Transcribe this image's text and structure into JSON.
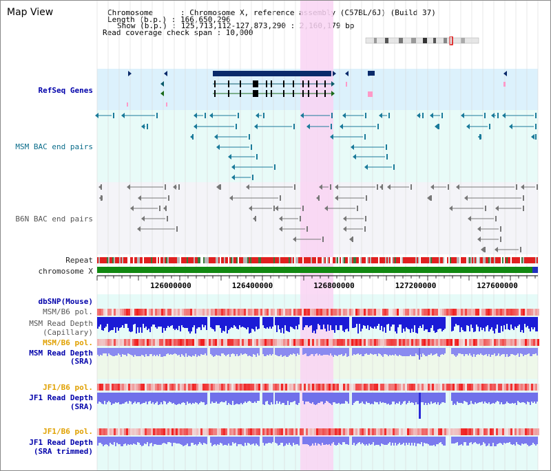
{
  "title": "Map View",
  "header": {
    "chromosome_line": "Chromosome      : Chromosome X, reference assembly (C57BL/6J) (Build 37)",
    "length_line": "Length (b.p.) : 166,650,296",
    "show_line": "Show (b.p.) : 125,713,112-127,873,290 : 2,160,179 bp",
    "coverage_line": "Read coverage check span : 10,000"
  },
  "tracks": [
    {
      "key": "refseq",
      "label": "RefSeq Genes",
      "color": "#0000aa"
    },
    {
      "key": "msm_bac",
      "label": "MSM BAC end pairs",
      "color": "#0a6c8a"
    },
    {
      "key": "b6n_bac",
      "label": "B6N BAC end pairs",
      "color": "#555555"
    },
    {
      "key": "repeat",
      "label": "Repeat",
      "color": "#222222"
    },
    {
      "key": "chrx",
      "label": "chromosome X",
      "color": "#222222"
    },
    {
      "key": "dbsnp",
      "label": "dbSNP(Mouse)",
      "color": "#0000aa"
    },
    {
      "key": "msm_b6_pol_1",
      "label": "MSM/B6 pol.",
      "color": "#555555"
    },
    {
      "key": "msm_depth_cap_1",
      "label": "MSM Read Depth",
      "color": "#555555"
    },
    {
      "key": "msm_depth_cap_2",
      "label": "(Capillary)",
      "color": "#555555"
    },
    {
      "key": "msm_b6_pol_2",
      "label": "MSM/B6 pol.",
      "color": "#e0a000"
    },
    {
      "key": "msm_depth_sra_1",
      "label": "MSM Read Depth",
      "color": "#0000aa"
    },
    {
      "key": "msm_depth_sra_2",
      "label": "(SRA)",
      "color": "#0000aa"
    },
    {
      "key": "jf1_b6_pol_1",
      "label": "JF1/B6 pol.",
      "color": "#e0a000"
    },
    {
      "key": "jf1_depth_sra_1",
      "label": "JF1 Read Depth",
      "color": "#0000aa"
    },
    {
      "key": "jf1_depth_sra_2",
      "label": "(SRA)",
      "color": "#0000aa"
    },
    {
      "key": "jf1_b6_pol_2",
      "label": "JF1/B6 pol.",
      "color": "#e0a000"
    },
    {
      "key": "jf1_depth_trim_1",
      "label": "JF1 Read Depth",
      "color": "#0000aa"
    },
    {
      "key": "jf1_depth_trim_2",
      "label": "(SRA trimmed)",
      "color": "#0000aa"
    }
  ],
  "axis": {
    "ticks": [
      "126000000",
      "126400000",
      "126800000",
      "127200000",
      "127600000"
    ],
    "tick_values": [
      126000000,
      126400000,
      126800000,
      127200000,
      127600000
    ],
    "start": 125713112,
    "end": 127873290
  },
  "highlight_region_color": "#f9d4f3",
  "colors": {
    "refseq_bg": "#dcf1fc",
    "msm_bac_bg": "#e8fbf8",
    "b6n_bac_bg": "#f4f4f8",
    "chrom_bar": "#118811",
    "depth_blue": "#2b2bd9",
    "depth_light": "#8a8af0",
    "pol_red": "#f05050"
  }
}
